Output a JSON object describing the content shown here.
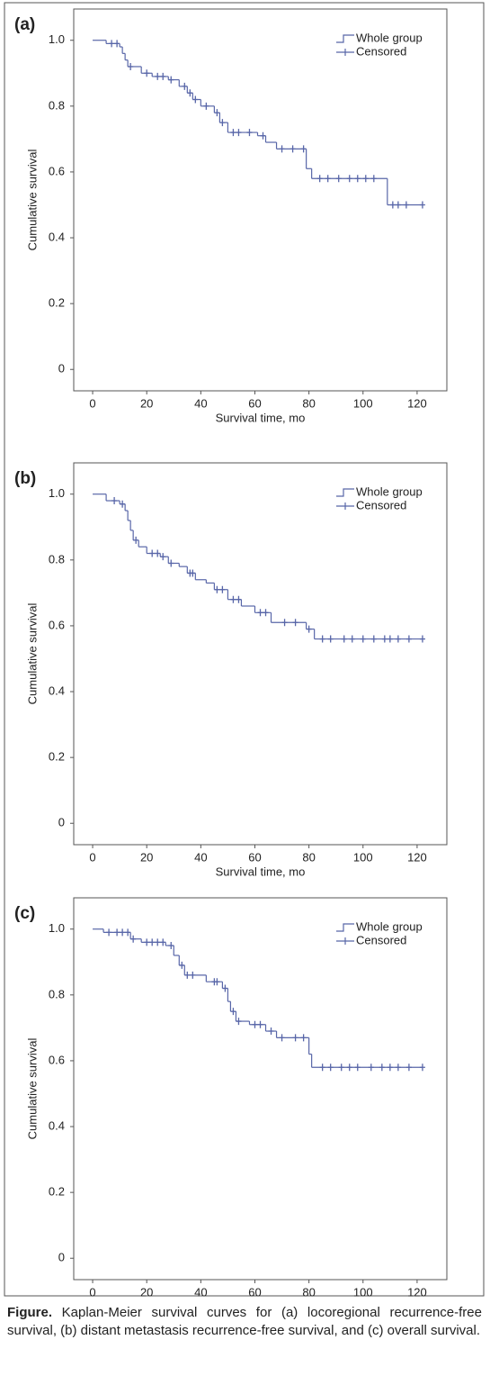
{
  "chart_data": [
    {
      "type": "step",
      "label": "(a)",
      "x_label": "Survival time, mo",
      "y_label": "Cumulative survival",
      "xlim": [
        -7,
        131
      ],
      "ylim": [
        -0.065,
        1.095
      ],
      "xticks": [
        0,
        20,
        40,
        60,
        80,
        100,
        120
      ],
      "yticks": [
        0,
        0.2,
        0.4,
        0.6,
        0.8,
        {
          "value": 1,
          "label": "1.0"
        }
      ],
      "series": [
        {
          "name": "Whole group",
          "color": "#5866a8",
          "x": [
            0,
            5,
            10,
            11,
            12,
            13,
            18,
            22,
            28,
            32,
            35,
            37,
            40,
            45,
            47,
            50,
            61,
            64,
            68,
            79,
            81,
            109,
            122
          ],
          "values": [
            1.0,
            0.99,
            0.98,
            0.96,
            0.94,
            0.92,
            0.9,
            0.89,
            0.88,
            0.86,
            0.84,
            0.82,
            0.8,
            0.78,
            0.75,
            0.72,
            0.71,
            0.69,
            0.67,
            0.61,
            0.58,
            0.5,
            0.5
          ]
        },
        {
          "name": "Censored",
          "color": "#5866a8",
          "marker": "plus",
          "x": [
            7,
            9,
            14,
            20,
            24,
            26,
            29,
            34,
            36,
            38,
            42,
            46,
            48,
            52,
            54,
            58,
            63,
            70,
            74,
            78,
            84,
            87,
            91,
            95,
            98,
            101,
            104,
            111,
            113,
            116,
            122
          ],
          "values": [
            0.99,
            0.99,
            0.92,
            0.9,
            0.89,
            0.89,
            0.88,
            0.86,
            0.84,
            0.82,
            0.8,
            0.78,
            0.75,
            0.72,
            0.72,
            0.72,
            0.71,
            0.67,
            0.67,
            0.67,
            0.58,
            0.58,
            0.58,
            0.58,
            0.58,
            0.58,
            0.58,
            0.5,
            0.5,
            0.5,
            0.5
          ]
        }
      ]
    },
    {
      "type": "step",
      "label": "(b)",
      "x_label": "Survival time, mo",
      "y_label": "Cumulative survival",
      "xlim": [
        -7,
        131
      ],
      "ylim": [
        -0.065,
        1.095
      ],
      "xticks": [
        0,
        20,
        40,
        60,
        80,
        100,
        120
      ],
      "yticks": [
        0,
        0.2,
        0.4,
        0.6,
        0.8,
        {
          "value": 1,
          "label": "1.0"
        }
      ],
      "series": [
        {
          "name": "Whole group",
          "color": "#5866a8",
          "x": [
            0,
            5,
            10,
            12,
            13,
            14,
            15,
            17,
            20,
            25,
            28,
            32,
            35,
            38,
            42,
            45,
            50,
            55,
            60,
            66,
            79,
            82,
            122
          ],
          "values": [
            1.0,
            0.98,
            0.97,
            0.95,
            0.92,
            0.89,
            0.86,
            0.84,
            0.82,
            0.81,
            0.79,
            0.78,
            0.76,
            0.74,
            0.73,
            0.71,
            0.68,
            0.66,
            0.64,
            0.61,
            0.59,
            0.56,
            0.56
          ]
        },
        {
          "name": "Censored",
          "color": "#5866a8",
          "marker": "plus",
          "x": [
            8,
            11,
            16,
            22,
            24,
            26,
            29,
            36,
            37,
            46,
            48,
            52,
            54,
            62,
            64,
            71,
            75,
            80,
            85,
            88,
            93,
            96,
            100,
            104,
            108,
            110,
            113,
            117,
            122
          ],
          "values": [
            0.98,
            0.97,
            0.86,
            0.82,
            0.82,
            0.81,
            0.79,
            0.76,
            0.76,
            0.71,
            0.71,
            0.68,
            0.68,
            0.64,
            0.64,
            0.61,
            0.61,
            0.59,
            0.56,
            0.56,
            0.56,
            0.56,
            0.56,
            0.56,
            0.56,
            0.56,
            0.56,
            0.56,
            0.56
          ]
        }
      ]
    },
    {
      "type": "step",
      "label": "(c)",
      "x_label": "Survival time, mo",
      "y_label": "Cumulative survival",
      "xlim": [
        -7,
        131
      ],
      "ylim": [
        -0.065,
        1.095
      ],
      "xticks": [
        0,
        20,
        40,
        60,
        80,
        100,
        120
      ],
      "yticks": [
        0,
        0.2,
        0.4,
        0.6,
        0.8,
        {
          "value": 1,
          "label": "1.0"
        }
      ],
      "series": [
        {
          "name": "Whole group",
          "color": "#5866a8",
          "x": [
            0,
            4,
            14,
            18,
            27,
            30,
            32,
            34,
            42,
            48,
            50,
            51,
            53,
            58,
            64,
            68,
            80,
            81,
            122
          ],
          "values": [
            1.0,
            0.99,
            0.97,
            0.96,
            0.95,
            0.92,
            0.89,
            0.86,
            0.84,
            0.82,
            0.78,
            0.75,
            0.72,
            0.71,
            0.69,
            0.67,
            0.62,
            0.58,
            0.58
          ]
        },
        {
          "name": "Censored",
          "color": "#5866a8",
          "marker": "plus",
          "x": [
            6,
            9,
            11,
            13,
            15,
            20,
            22,
            24,
            26,
            29,
            33,
            35,
            37,
            45,
            46,
            49,
            52,
            54,
            60,
            62,
            66,
            70,
            75,
            78,
            85,
            88,
            92,
            95,
            98,
            103,
            107,
            110,
            113,
            117,
            122
          ],
          "values": [
            0.99,
            0.99,
            0.99,
            0.99,
            0.97,
            0.96,
            0.96,
            0.96,
            0.96,
            0.95,
            0.89,
            0.86,
            0.86,
            0.84,
            0.84,
            0.82,
            0.75,
            0.72,
            0.71,
            0.71,
            0.69,
            0.67,
            0.67,
            0.67,
            0.58,
            0.58,
            0.58,
            0.58,
            0.58,
            0.58,
            0.58,
            0.58,
            0.58,
            0.58,
            0.58
          ]
        }
      ]
    }
  ],
  "caption": {
    "lead": "Figure.",
    "text": "Kaplan-Meier survival curves for (a) locoregional recurrence-free survival, (b) distant metastasis recurrence-free survival, and (c) overall survival."
  }
}
